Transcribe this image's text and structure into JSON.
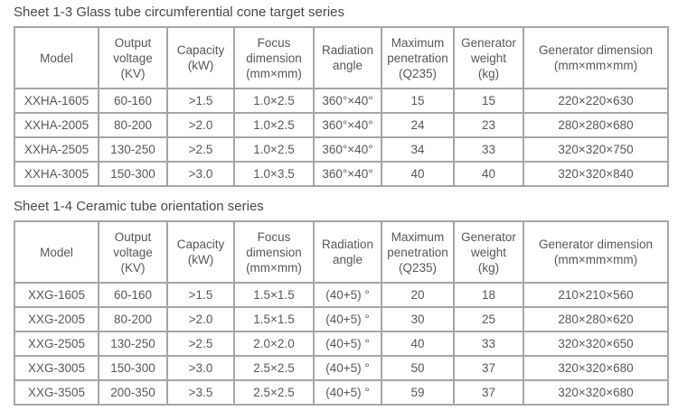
{
  "page": {
    "background": "#ffffff",
    "table_border_color": "#a6a6a6",
    "text_color": "#585858",
    "title_color": "#4a4a4a"
  },
  "tables": [
    {
      "title": "Sheet 1-3 Glass tube circumferential cone target series",
      "column_headers": [
        "Model",
        "Output\nvoltage\n(KV)",
        "Capacity\n(kW)",
        "Focus\ndimension\n(mm×mm)",
        "Radiation\nangle",
        "Maximum\npenetration\n(Q235)",
        "Generator\nweight\n(kg)",
        "Generator dimension\n(mm×mm×mm)"
      ],
      "rows": [
        [
          "XXHA-1605",
          "60-160",
          ">1.5",
          "1.0×2.5",
          "360°×40°",
          "15",
          "15",
          "220×220×630"
        ],
        [
          "XXHA-2005",
          "80-200",
          ">2.0",
          "1.0×2.5",
          "360°×40°",
          "24",
          "23",
          "280×280×680"
        ],
        [
          "XXHA-2505",
          "130-250",
          ">2.5",
          "1.0×2.5",
          "360°×40°",
          "34",
          "33",
          "320×320×750"
        ],
        [
          "XXHA-3005",
          "150-300",
          ">3.0",
          "1.0×3.5",
          "360°×40°",
          "40",
          "40",
          "320×320×840"
        ]
      ]
    },
    {
      "title": "Sheet 1-4 Ceramic tube orientation series",
      "column_headers": [
        "Model",
        "Output\nvoltage\n(KV)",
        "Capacity\n(kW)",
        "Focus\ndimension\n(mm×mm)",
        "Radiation\nangle",
        "Maximum\npenetration\n(Q235)",
        "Generator\nweight\n(kg)",
        "Generator dimension\n(mm×mm×mm)"
      ],
      "rows": [
        [
          "XXG-1605",
          "60-160",
          ">1.5",
          "1.5×1.5",
          "(40+5) °",
          "20",
          "18",
          "210×210×560"
        ],
        [
          "XXG-2005",
          "80-200",
          ">2.0",
          "1.5×1.5",
          "(40+5) °",
          "30",
          "25",
          "280×280×620"
        ],
        [
          "XXG-2505",
          "130-250",
          ">2.5",
          "2.0×2.0",
          "(40+5) °",
          "40",
          "33",
          "320×320×650"
        ],
        [
          "XXG-3005",
          "150-300",
          ">3.0",
          "2.5×2.5",
          "(40+5) °",
          "50",
          "37",
          "320×320×680"
        ],
        [
          "XXG-3505",
          "200-350",
          ">3.5",
          "2.5×2.5",
          "(40+5) °",
          "59",
          "37",
          "320×320×680"
        ]
      ]
    }
  ]
}
